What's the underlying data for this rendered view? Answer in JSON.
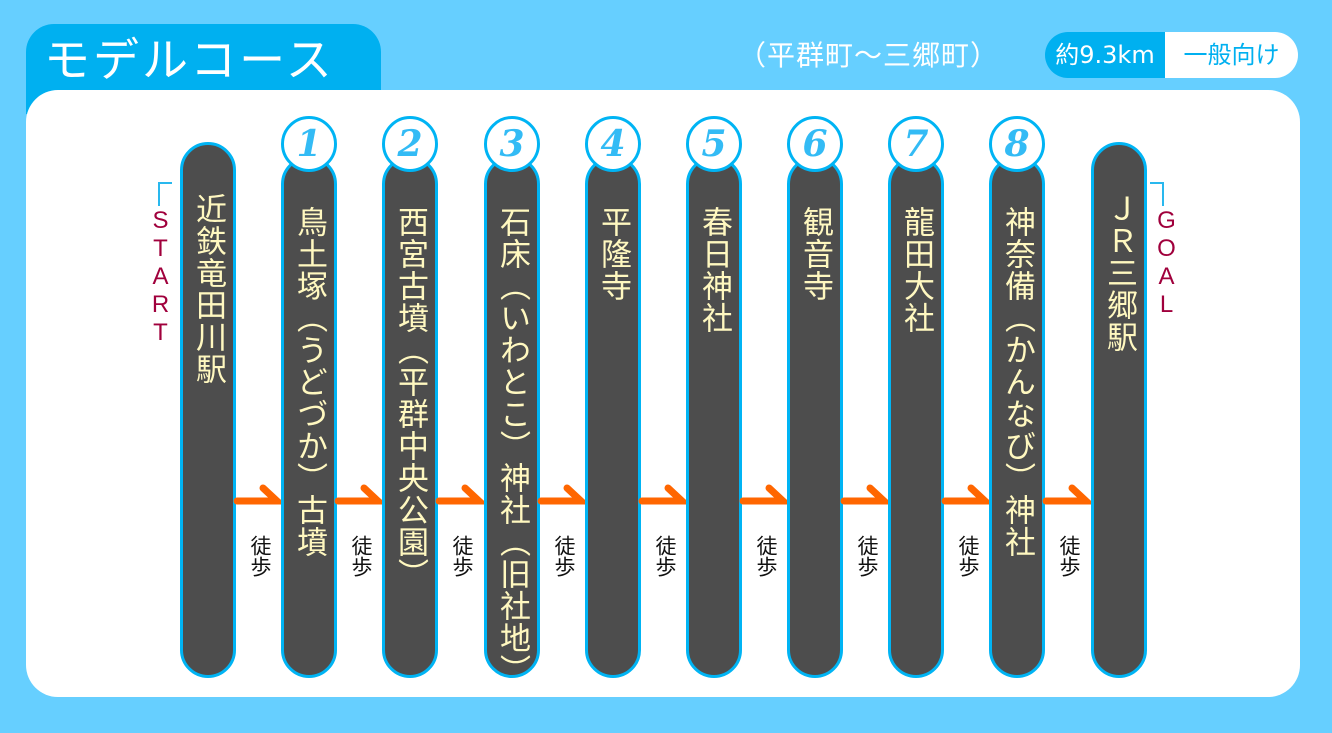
{
  "header": {
    "title": "モデルコース",
    "route": "（平群町～三郷町）",
    "distance": "約9.3km",
    "level": "一般向け"
  },
  "colors": {
    "background": "#66cfff",
    "accent": "#00b0f0",
    "pill": "#4d4d4d",
    "pill_text": "#fff8c0",
    "arrow": "#ff6600",
    "start_goal": "#a0003c"
  },
  "course": {
    "start_label": "START",
    "goal_label": "GOAL",
    "walk_label": "徒歩",
    "stops": [
      {
        "number": "",
        "name": "近鉄竜田川駅",
        "type": "start"
      },
      {
        "number": "1",
        "name": "鳥土塚（うどづか）古墳",
        "type": "stop"
      },
      {
        "number": "2",
        "name": "西宮古墳（平群中央公園）",
        "type": "stop"
      },
      {
        "number": "3",
        "name": "石床（いわとこ）神社（旧社地）",
        "type": "stop"
      },
      {
        "number": "4",
        "name": "平隆寺",
        "type": "stop"
      },
      {
        "number": "5",
        "name": "春日神社",
        "type": "stop"
      },
      {
        "number": "6",
        "name": "観音寺",
        "type": "stop"
      },
      {
        "number": "7",
        "name": "龍田大社",
        "type": "stop"
      },
      {
        "number": "8",
        "name": "神奈備（かんなび）神社",
        "type": "stop"
      },
      {
        "number": "",
        "name": "ＪＲ三郷駅",
        "type": "goal"
      }
    ]
  }
}
